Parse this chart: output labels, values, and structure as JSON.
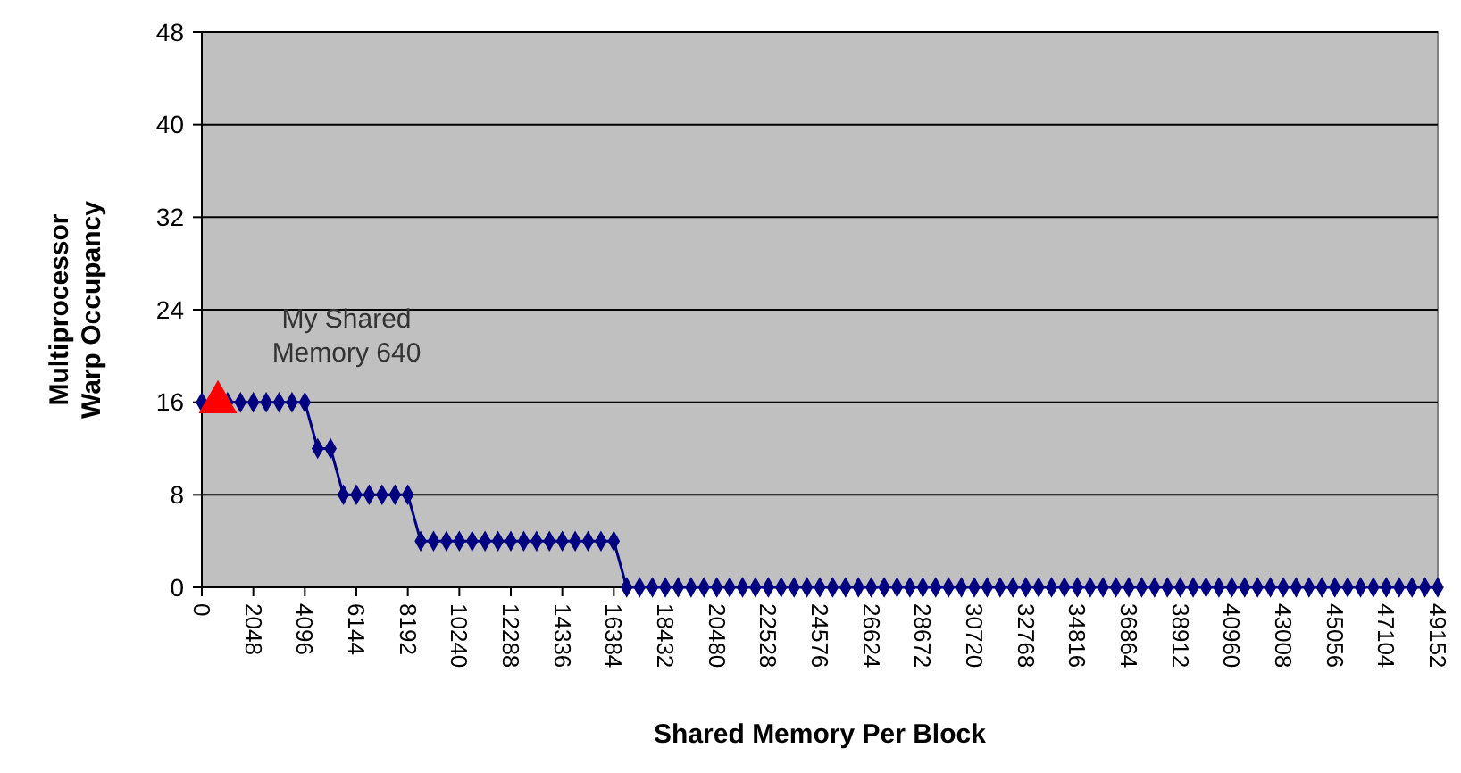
{
  "chart_data": {
    "type": "line",
    "xlabel": "Shared Memory Per Block",
    "ylabel": "Multiprocessor Warp Occupancy",
    "xlim": [
      0,
      49152
    ],
    "xticks": [
      0,
      2048,
      4096,
      6144,
      8192,
      10240,
      12288,
      14336,
      16384,
      18432,
      20480,
      22528,
      24576,
      26624,
      28672,
      30720,
      32768,
      34816,
      36864,
      38912,
      40960,
      43008,
      45056,
      47104,
      49152
    ],
    "ylim": [
      0,
      48
    ],
    "yticks": [
      0,
      8,
      16,
      24,
      32,
      40,
      48
    ],
    "grid": "y",
    "series": [
      {
        "color": "#000080",
        "marker": "diamond",
        "x": [
          0,
          512,
          1024,
          1536,
          2048,
          2560,
          3072,
          3584,
          4096,
          4608,
          5120,
          5632,
          6144,
          6656,
          7168,
          7680,
          8192,
          8704,
          9216,
          9728,
          10240,
          10752,
          11264,
          11776,
          12288,
          12800,
          13312,
          13824,
          14336,
          14848,
          15360,
          15872,
          16384,
          16896,
          17408,
          17920,
          18432,
          18944,
          19456,
          19968,
          20480,
          20992,
          21504,
          22016,
          22528,
          23040,
          23552,
          24064,
          24576,
          25088,
          25600,
          26112,
          26624,
          27136,
          27648,
          28160,
          28672,
          29184,
          29696,
          30208,
          30720,
          31232,
          31744,
          32256,
          32768,
          33280,
          33792,
          34304,
          34816,
          35328,
          35840,
          36352,
          36864,
          37376,
          37888,
          38400,
          38912,
          39424,
          39936,
          40448,
          40960,
          41472,
          41984,
          42496,
          43008,
          43520,
          44032,
          44544,
          45056,
          45568,
          46080,
          46592,
          47104,
          47616,
          48128,
          48640,
          49152
        ],
        "values": [
          16,
          null,
          16,
          16,
          16,
          16,
          16,
          16,
          16,
          12,
          12,
          8,
          8,
          8,
          8,
          8,
          8,
          4,
          4,
          4,
          4,
          4,
          4,
          4,
          4,
          4,
          4,
          4,
          4,
          4,
          4,
          4,
          4,
          0,
          0,
          0,
          0,
          0,
          0,
          0,
          0,
          0,
          0,
          0,
          0,
          0,
          0,
          0,
          0,
          0,
          0,
          0,
          0,
          0,
          0,
          0,
          0,
          0,
          0,
          0,
          0,
          0,
          0,
          0,
          0,
          0,
          0,
          0,
          0,
          0,
          0,
          0,
          0,
          0,
          0,
          0,
          0,
          0,
          0,
          0,
          0,
          0,
          0,
          0,
          0,
          0,
          0,
          0,
          0,
          0,
          0,
          0,
          0,
          0,
          0,
          0,
          0
        ]
      },
      {
        "type": "scatter",
        "color": "#ff0000",
        "marker": "triangle",
        "x": [
          640
        ],
        "values": [
          16
        ]
      }
    ],
    "annotations": [
      {
        "text": "My Shared Memory 640",
        "x": 640,
        "y": 16
      }
    ]
  }
}
